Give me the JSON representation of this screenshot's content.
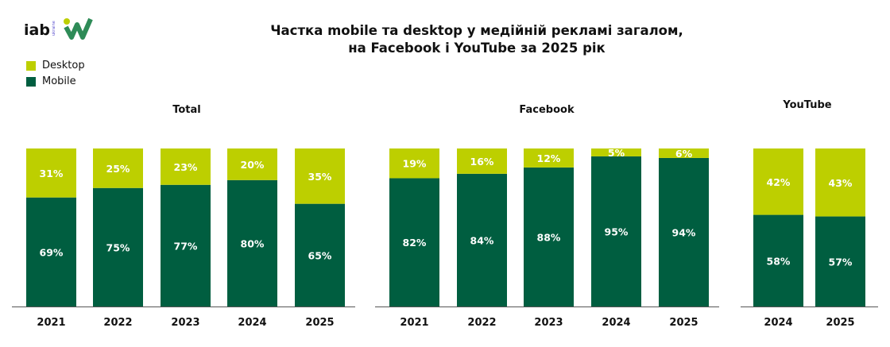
{
  "title_line1": "Частка mobile та desktop у медійній рекламі загалом,",
  "title_line2": "на Facebook і YouTube за 2025 рік",
  "logo_text": "iab ukraine",
  "colors": {
    "desktop": "#BDCF00",
    "mobile": "#005E40"
  },
  "legend": [
    {
      "label": "Desktop",
      "key": "desktop"
    },
    {
      "label": "Mobile",
      "key": "mobile"
    }
  ],
  "chart_data": [
    {
      "type": "bar",
      "stacked": true,
      "title": "Total",
      "categories": [
        "2021",
        "2022",
        "2023",
        "2024",
        "2025"
      ],
      "series": [
        {
          "name": "Mobile",
          "values": [
            69,
            75,
            77,
            80,
            65
          ]
        },
        {
          "name": "Desktop",
          "values": [
            31,
            25,
            23,
            20,
            35
          ]
        }
      ],
      "data_labels": [
        [
          "69%",
          "75%",
          "77%",
          "80%",
          "65%"
        ],
        [
          "31%",
          "25%",
          "23%",
          "20%",
          "35%"
        ]
      ]
    },
    {
      "type": "bar",
      "stacked": true,
      "title": "Facebook",
      "categories": [
        "2021",
        "2022",
        "2023",
        "2024",
        "2025"
      ],
      "series": [
        {
          "name": "Mobile",
          "values": [
            82,
            84,
            88,
            95,
            94
          ]
        },
        {
          "name": "Desktop",
          "values": [
            19,
            16,
            12,
            5,
            6
          ]
        }
      ],
      "data_labels": [
        [
          "82%",
          "84%",
          "88%",
          "95%",
          "94%"
        ],
        [
          "19%",
          "16%",
          "12%",
          "5%",
          "6%"
        ]
      ]
    },
    {
      "type": "bar",
      "stacked": true,
      "title": "YouTube",
      "categories": [
        "2024",
        "2025"
      ],
      "series": [
        {
          "name": "Mobile",
          "values": [
            58,
            57
          ]
        },
        {
          "name": "Desktop",
          "values": [
            42,
            43
          ]
        }
      ],
      "data_labels": [
        [
          "58%",
          "57%"
        ],
        [
          "42%",
          "43%"
        ]
      ]
    }
  ]
}
